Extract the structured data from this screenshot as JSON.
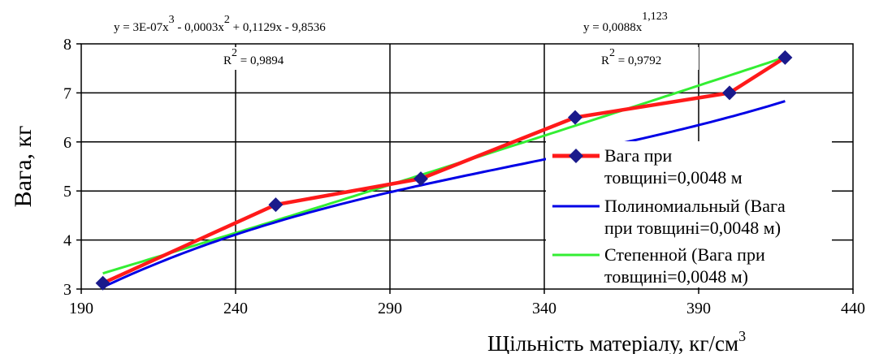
{
  "chart_data": {
    "type": "line",
    "xlabel": "Щільність матеріалу, кг/см",
    "xlabel_sup": "3",
    "ylabel": "Вага, кг",
    "xlim": [
      190,
      440
    ],
    "ylim": [
      3,
      8
    ],
    "xticks": [
      190,
      240,
      290,
      340,
      390,
      440
    ],
    "yticks": [
      3,
      4,
      5,
      6,
      7,
      8
    ],
    "grid": true,
    "legend_position": "right",
    "series": [
      {
        "name": "Вага при товщині=0,0048 м",
        "legend_lines": [
          "Вага при",
          "товщині=0,0048 м"
        ],
        "kind": "data",
        "color": "#ff1a1a",
        "marker": "diamond",
        "marker_color": "#1a1a8c",
        "x": [
          197,
          253,
          300,
          350,
          400,
          418
        ],
        "y": [
          3.12,
          4.72,
          5.25,
          6.5,
          7.0,
          7.72
        ]
      },
      {
        "name": "Полиномиальный (Вага при товщині=0,0048 м)",
        "legend_lines": [
          "Полиномиальный (Вага",
          "при товщині=0,0048 м)"
        ],
        "kind": "poly",
        "color": "#0000e6",
        "coef": [
          3e-07,
          -0.0003,
          0.1129,
          -9.8536
        ],
        "x_range": [
          197,
          418
        ]
      },
      {
        "name": "Степенной (Вага при товщині=0,0048 м)",
        "legend_lines": [
          "Степенной (Вага при",
          "товщині=0,0048 м)"
        ],
        "kind": "power",
        "color": "#33ee33",
        "a": 0.0088,
        "b": 1.123,
        "x_range": [
          197,
          418
        ]
      }
    ],
    "annotations": {
      "poly_equation": {
        "parts": [
          "y = 3E-07x",
          "3",
          " - 0,0003x",
          "2",
          " + 0,1129x - 9,8536"
        ],
        "r2": [
          "R",
          "2",
          " = 0,9894"
        ]
      },
      "power_equation": {
        "parts": [
          "y = 0,0088x",
          "1,123"
        ],
        "r2": [
          "R",
          "2",
          " = 0,9792"
        ]
      }
    }
  }
}
